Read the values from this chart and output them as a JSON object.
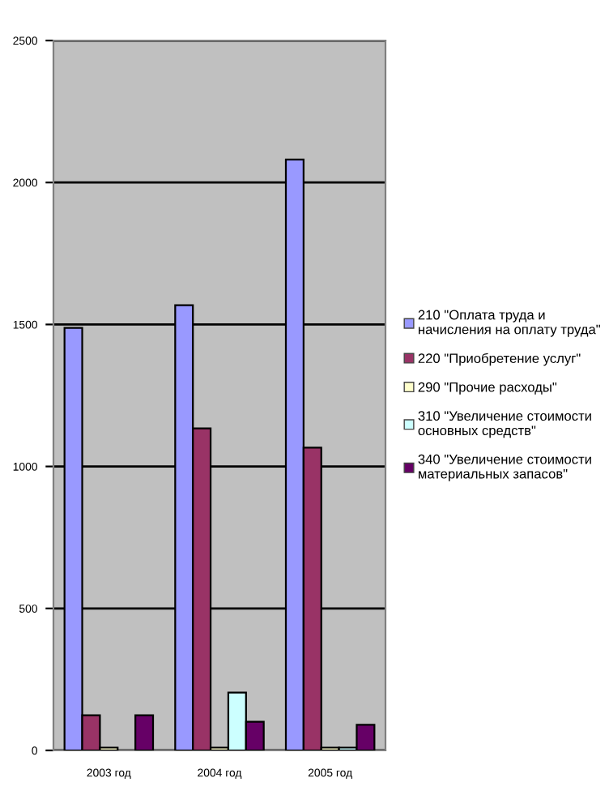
{
  "chart_data": {
    "type": "bar",
    "categories": [
      "2003 год",
      "2004 год",
      "2005 год"
    ],
    "series": [
      {
        "name": "210 \"Оплата труда и\nначисления на оплату труда\"",
        "color": "#9999ff",
        "values": [
          1488,
          1568,
          2081
        ]
      },
      {
        "name": "220 \"Приобретение услуг\"",
        "color": "#993366",
        "values": [
          124,
          1134,
          1066
        ]
      },
      {
        "name": "290 \"Прочие расходы\"",
        "color": "#ffffcc",
        "values": [
          10,
          10,
          10
        ]
      },
      {
        "name": "310 \"Увеличение стоимости\nосновных средств\"",
        "color": "#ccffff",
        "values": [
          null,
          204,
          10
        ]
      },
      {
        "name": "340 \"Увеличение стоимости\nматериальных запасов\"",
        "color": "#660066",
        "values": [
          124,
          101,
          90
        ]
      }
    ],
    "ylim": [
      0,
      2500
    ],
    "yticks": [
      0,
      500,
      1000,
      1500,
      2000,
      2500
    ],
    "grid": "y",
    "legend": "right"
  }
}
